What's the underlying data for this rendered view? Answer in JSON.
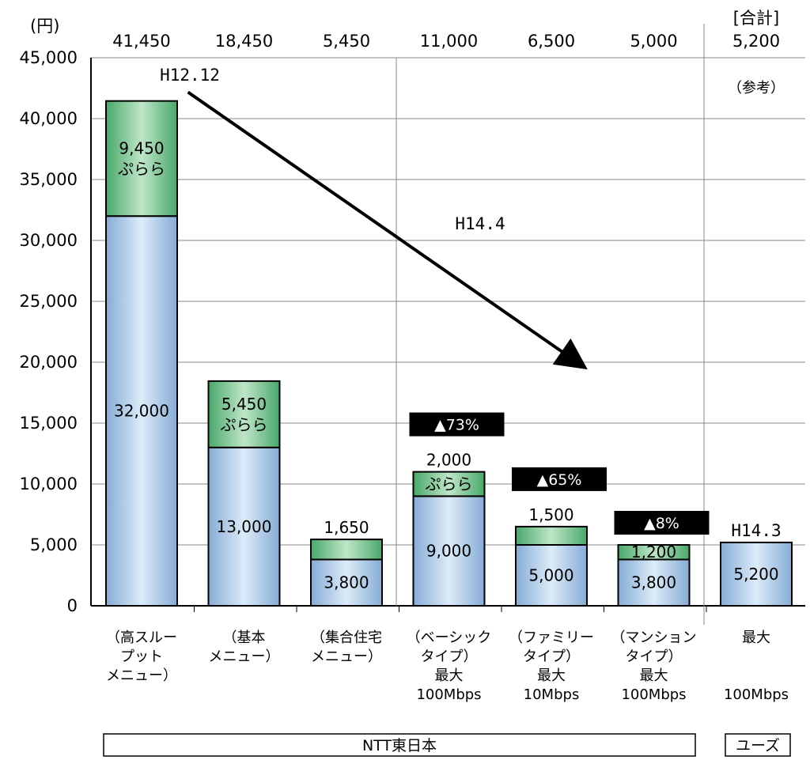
{
  "chart_data": {
    "type": "bar",
    "stacked": true,
    "y_unit": "(円)",
    "ylim": [
      0,
      45000
    ],
    "ytick_step": 5000,
    "ytick_labels": [
      "0",
      "5,000",
      "10,000",
      "15,000",
      "20,000",
      "25,000",
      "30,000",
      "35,000",
      "40,000",
      "45,000"
    ],
    "grid": true,
    "categories": [
      {
        "label_lines": [
          "（高スルー",
          "プット",
          "メニュー）"
        ],
        "speed": "",
        "total_label": "41,450",
        "segments": [
          {
            "value": 32000,
            "label": "32,000",
            "color": "#a9c8e6"
          },
          {
            "value": 9450,
            "label_lines": [
              "9,450",
              "ぷらら"
            ],
            "color": "#6fbf8a"
          }
        ]
      },
      {
        "label_lines": [
          "（基本",
          "メニュー）"
        ],
        "speed": "",
        "total_label": "18,450",
        "segments": [
          {
            "value": 13000,
            "label": "13,000",
            "color": "#a9c8e6"
          },
          {
            "value": 5450,
            "label_lines": [
              "5,450",
              "ぷらら"
            ],
            "color": "#6fbf8a"
          }
        ]
      },
      {
        "label_lines": [
          "（集合住宅",
          "メニュー）"
        ],
        "speed": "",
        "total_label": "5,450",
        "segments": [
          {
            "value": 3800,
            "label": "3,800",
            "color": "#a9c8e6"
          },
          {
            "value": 1650,
            "label_lines": [],
            "color": "#6fbf8a"
          }
        ],
        "above_label": "1,650"
      },
      {
        "label_lines": [
          "（ベーシック",
          "タイプ）",
          "最大"
        ],
        "speed": "100Mbps",
        "total_label": "11,000",
        "segments": [
          {
            "value": 9000,
            "label": "9,000",
            "color": "#a9c8e6"
          },
          {
            "value": 2000,
            "label_lines": [
              "ぷらら"
            ],
            "color": "#6fbf8a"
          }
        ],
        "above_label": "2,000",
        "badge": "▲73%"
      },
      {
        "label_lines": [
          "（ファミリー",
          "タイプ）",
          "最大"
        ],
        "speed": "10Mbps",
        "total_label": "6,500",
        "segments": [
          {
            "value": 5000,
            "label": "5,000",
            "color": "#a9c8e6"
          },
          {
            "value": 1500,
            "label_lines": [],
            "color": "#6fbf8a"
          }
        ],
        "above_label": "1,500",
        "badge": "▲65%"
      },
      {
        "label_lines": [
          "（マンション",
          "タイプ）",
          "最大"
        ],
        "speed": "100Mbps",
        "total_label": "5,000",
        "segments": [
          {
            "value": 3800,
            "label": "3,800",
            "color": "#a9c8e6"
          },
          {
            "value": 1200,
            "label_lines": [
              "1,200"
            ],
            "color": "#6fbf8a"
          }
        ],
        "badge": "▲8%"
      },
      {
        "label_lines": [
          "最大"
        ],
        "speed": "100Mbps",
        "total_label": "5,200",
        "top_header": "[合計]",
        "segments": [
          {
            "value": 5200,
            "label": "5,200",
            "color": "#a9c8e6"
          }
        ],
        "above_label": "H14.3"
      }
    ],
    "annotations": {
      "start": "H12.12",
      "end": "H14.4",
      "reference": "（参考）",
      "arrow_from": [
        0.8,
        42500
      ],
      "arrow_to": [
        4.6,
        20000
      ]
    },
    "groups": [
      {
        "label": "NTT東日本",
        "from": 0,
        "to": 5
      },
      {
        "label": "ユーズ",
        "from": 6,
        "to": 6
      }
    ],
    "colors": {
      "base": "#a9c8e6",
      "top": "#6fbf8a",
      "badge": "#000000",
      "grid": "#888888"
    }
  }
}
